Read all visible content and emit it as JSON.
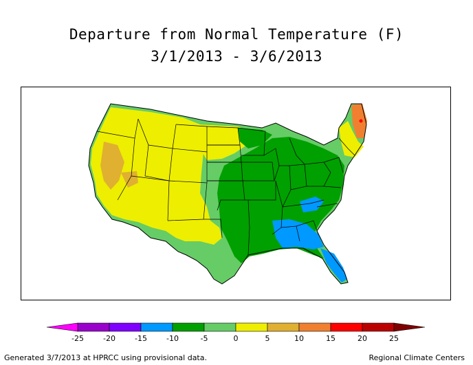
{
  "title": "Departure from Normal Temperature (F)",
  "subtitle": "3/1/2013 - 3/6/2013",
  "legend": {
    "ticks": [
      "-25",
      "-20",
      "-15",
      "-10",
      "-5",
      "0",
      "5",
      "10",
      "15",
      "20",
      "25"
    ],
    "colors": [
      "#ff00ff",
      "#9900cc",
      "#7f00ff",
      "#0099ff",
      "#00a000",
      "#66cc66",
      "#eeee00",
      "#e0b030",
      "#f08030",
      "#ff0000",
      "#bb0000",
      "#800000"
    ],
    "low_arrow_color": "#ff00ff",
    "high_arrow_color": "#800000"
  },
  "map": {
    "region_colors": {
      "warm_minor": "#eeee00",
      "warm_moderate": "#e0b030",
      "warm_high": "#f08030",
      "near_normal": "#66cc66",
      "cool": "#00a000",
      "cold": "#0099ff",
      "very_warm_spot": "#ff0000"
    }
  },
  "footer_left": "Generated 3/7/2013 at HPRCC using provisional data.",
  "footer_right": "Regional Climate Centers"
}
